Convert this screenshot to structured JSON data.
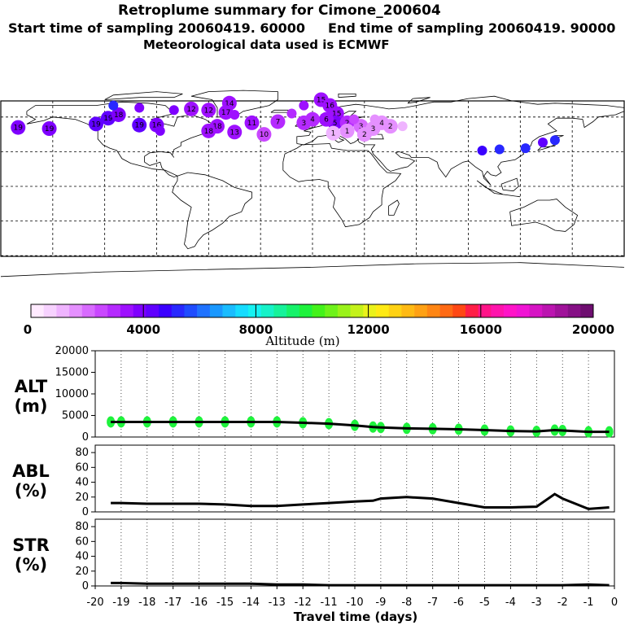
{
  "header": {
    "title": "Retroplume summary for Cimone_200604",
    "start_label": "Start time of sampling 20060419. 60000",
    "end_label": "End time of sampling 20060419. 90000",
    "met_label": "Meteorological data used is ECMWF"
  },
  "map": {
    "description_points": [
      {
        "lon": -170,
        "lat": 51,
        "alt": 3800,
        "label": "19"
      },
      {
        "lon": -152,
        "lat": 50,
        "alt": 3800,
        "label": "19"
      },
      {
        "lon": -125,
        "lat": 54,
        "alt": 4500,
        "label": "19"
      },
      {
        "lon": -118,
        "lat": 59,
        "alt": 4200,
        "label": "19"
      },
      {
        "lon": -112,
        "lat": 62,
        "alt": 3900,
        "label": "18"
      },
      {
        "lon": -100,
        "lat": 68,
        "alt": 3700,
        "label": ""
      },
      {
        "lon": -115,
        "lat": 70,
        "alt": 5000,
        "label": ""
      },
      {
        "lon": -100,
        "lat": 53,
        "alt": 4300,
        "label": "19"
      },
      {
        "lon": -90,
        "lat": 53,
        "alt": 3800,
        "label": "16"
      },
      {
        "lon": -88,
        "lat": 48,
        "alt": 3700,
        "label": ""
      },
      {
        "lon": -80,
        "lat": 66,
        "alt": 3700,
        "label": ""
      },
      {
        "lon": -70,
        "lat": 67,
        "alt": 3500,
        "label": "12"
      },
      {
        "lon": -60,
        "lat": 66,
        "alt": 3500,
        "label": "12"
      },
      {
        "lon": -48,
        "lat": 72,
        "alt": 3500,
        "label": "14"
      },
      {
        "lon": -50,
        "lat": 64,
        "alt": 3600,
        "label": "17"
      },
      {
        "lon": -45,
        "lat": 62,
        "alt": 3500,
        "label": ""
      },
      {
        "lon": -55,
        "lat": 52,
        "alt": 3400,
        "label": "18"
      },
      {
        "lon": -60,
        "lat": 48,
        "alt": 3600,
        "label": "18"
      },
      {
        "lon": -45,
        "lat": 47,
        "alt": 3300,
        "label": "13"
      },
      {
        "lon": -28,
        "lat": 45,
        "alt": 2400,
        "label": "10"
      },
      {
        "lon": -35,
        "lat": 55,
        "alt": 3500,
        "label": "11"
      },
      {
        "lon": -20,
        "lat": 56,
        "alt": 2900,
        "label": "7"
      },
      {
        "lon": -12,
        "lat": 63,
        "alt": 3000,
        "label": ""
      },
      {
        "lon": -5,
        "lat": 70,
        "alt": 3200,
        "label": ""
      },
      {
        "lon": 5,
        "lat": 75,
        "alt": 3300,
        "label": "15"
      },
      {
        "lon": 10,
        "lat": 70,
        "alt": 3200,
        "label": "16"
      },
      {
        "lon": 14,
        "lat": 63,
        "alt": 3600,
        "label": "15"
      },
      {
        "lon": 13,
        "lat": 55,
        "alt": 3800,
        "label": "5"
      },
      {
        "lon": 8,
        "lat": 58,
        "alt": 3300,
        "label": "6"
      },
      {
        "lon": 0,
        "lat": 58,
        "alt": 3000,
        "label": "4"
      },
      {
        "lon": -5,
        "lat": 55,
        "alt": 3000,
        "label": "3"
      },
      {
        "lon": 20,
        "lat": 55,
        "alt": 2800,
        "label": "2"
      },
      {
        "lon": 28,
        "lat": 52,
        "alt": 2100,
        "label": "3"
      },
      {
        "lon": 35,
        "lat": 50,
        "alt": 1800,
        "label": "3"
      },
      {
        "lon": 40,
        "lat": 55,
        "alt": 1600,
        "label": "4"
      },
      {
        "lon": 45,
        "lat": 52,
        "alt": 1500,
        "label": "2"
      },
      {
        "lon": 52,
        "lat": 52,
        "alt": 1300,
        "label": ""
      },
      {
        "lon": 20,
        "lat": 48,
        "alt": 1500,
        "label": "1"
      },
      {
        "lon": 12,
        "lat": 46,
        "alt": 1200,
        "label": "1"
      },
      {
        "lon": 30,
        "lat": 45,
        "alt": 1400,
        "label": "2"
      },
      {
        "lon": 36,
        "lat": 58,
        "alt": 1700,
        "label": ""
      },
      {
        "lon": 24,
        "lat": 58,
        "alt": 2300,
        "label": ""
      },
      {
        "lon": 98,
        "lat": 31,
        "alt": 4600,
        "label": ""
      },
      {
        "lon": 108,
        "lat": 32,
        "alt": 5000,
        "label": ""
      },
      {
        "lon": 123,
        "lat": 33,
        "alt": 5000,
        "label": ""
      },
      {
        "lon": 133,
        "lat": 38,
        "alt": 4500,
        "label": ""
      },
      {
        "lon": 140,
        "lat": 40,
        "alt": 5000,
        "label": ""
      }
    ]
  },
  "colorbar": {
    "tick_labels": [
      "0",
      "4000",
      "8000",
      "12000",
      "16000",
      "20000"
    ],
    "caption": "Altitude (m)",
    "colors": [
      "#ffeaff",
      "#f7d2ff",
      "#efb4ff",
      "#e590ff",
      "#d86bff",
      "#c947ff",
      "#b52aff",
      "#9e10ff",
      "#7f00ff",
      "#6000ff",
      "#3a00ff",
      "#2828ff",
      "#1f4cff",
      "#1f72ff",
      "#1a98ff",
      "#1abcff",
      "#16dcff",
      "#16f2f2",
      "#16f2c8",
      "#16f29a",
      "#16f26a",
      "#1ef23c",
      "#43f21a",
      "#6ef21a",
      "#9af21a",
      "#c4f21a",
      "#eaf21a",
      "#ffea14",
      "#ffd214",
      "#ffba14",
      "#ffa114",
      "#ff8614",
      "#ff6a14",
      "#ff4814",
      "#ff1e46",
      "#ff1488",
      "#ff14ac",
      "#ff14c8",
      "#f014d4",
      "#d614c4",
      "#bb14b0",
      "#a0129a",
      "#861086",
      "#6e0e70"
    ]
  },
  "chart_data": [
    {
      "type": "line",
      "name": "ALT",
      "panel_label": "ALT",
      "unit_label": "(m)",
      "ylim": [
        0,
        20000
      ],
      "y_ticks": [
        "0",
        "5000",
        "10000",
        "15000",
        "20000"
      ],
      "x": [
        -19.4,
        -19,
        -18,
        -17,
        -16,
        -15,
        -14,
        -13,
        -12,
        -11,
        -10,
        -9.3,
        -9,
        -8,
        -7,
        -6,
        -5,
        -4,
        -3,
        -2.3,
        -2,
        -1,
        -0.2
      ],
      "values": [
        3500,
        3500,
        3500,
        3500,
        3500,
        3500,
        3500,
        3500,
        3300,
        3100,
        2700,
        2300,
        2200,
        2000,
        1900,
        1800,
        1600,
        1400,
        1300,
        1600,
        1500,
        1200,
        1200
      ]
    },
    {
      "type": "line",
      "name": "ABL",
      "panel_label": "ABL",
      "unit_label": "(%)",
      "ylim": [
        0,
        90
      ],
      "y_ticks": [
        "0",
        "20",
        "40",
        "60",
        "80"
      ],
      "x": [
        -19.4,
        -19,
        -18,
        -17,
        -16,
        -15,
        -14,
        -13,
        -12,
        -11,
        -10,
        -9.3,
        -9,
        -8,
        -7,
        -6,
        -5,
        -4,
        -3,
        -2.3,
        -2,
        -1,
        -0.2
      ],
      "values": [
        12,
        12,
        11,
        11,
        11,
        10,
        8,
        8,
        10,
        12,
        14,
        15,
        18,
        20,
        18,
        12,
        6,
        6,
        7,
        24,
        18,
        4,
        6
      ]
    },
    {
      "type": "line",
      "name": "STR",
      "panel_label": "STR",
      "unit_label": "(%)",
      "ylim": [
        0,
        90
      ],
      "y_ticks": [
        "0",
        "20",
        "40",
        "60",
        "80"
      ],
      "x": [
        -19.4,
        -19,
        -18,
        -17,
        -16,
        -15,
        -14,
        -13,
        -12,
        -11,
        -10,
        -9.3,
        -9,
        -8,
        -7,
        -6,
        -5,
        -4,
        -3,
        -2.3,
        -2,
        -1,
        -0.2
      ],
      "values": [
        4,
        4,
        3,
        3,
        3,
        3,
        3,
        2,
        2,
        1,
        1,
        1,
        1,
        1,
        1,
        1,
        1,
        1,
        1,
        1,
        1,
        2,
        1
      ]
    }
  ],
  "x_axis": {
    "xlim": [
      -20,
      0
    ],
    "tick_labels": [
      "-20",
      "-19",
      "-18",
      "-17",
      "-16",
      "-15",
      "-14",
      "-13",
      "-12",
      "-11",
      "-10",
      "-9",
      "-8",
      "-7",
      "-6",
      "-5",
      "-4",
      "-3",
      "-2",
      "-1",
      "0"
    ],
    "xlabel": "Travel time (days)"
  },
  "alt_cloud_color": "#1ef23c"
}
